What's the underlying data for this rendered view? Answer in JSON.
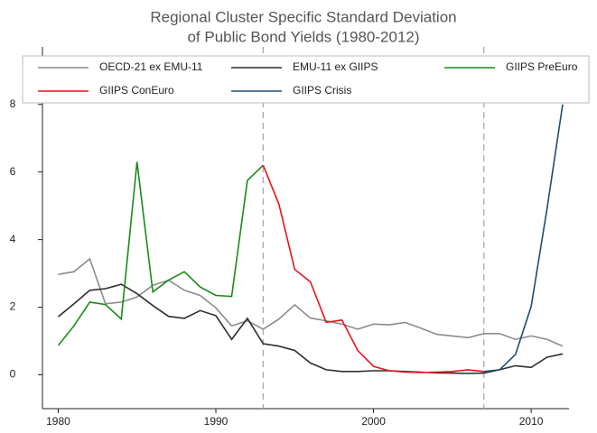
{
  "chart_data": {
    "type": "line",
    "title": [
      "Regional Cluster Specific Standard Deviation",
      "of Public Bond Yields (1980-2012)"
    ],
    "x": [
      1980,
      1981,
      1982,
      1983,
      1984,
      1985,
      1986,
      1987,
      1988,
      1989,
      1990,
      1991,
      1992,
      1993,
      1994,
      1995,
      1996,
      1997,
      1998,
      1999,
      2000,
      2001,
      2002,
      2003,
      2004,
      2005,
      2006,
      2007,
      2008,
      2009,
      2010,
      2011,
      2012
    ],
    "series": [
      {
        "name": "OECD-21 ex EMU-11",
        "color": "#8c8c8c",
        "values": [
          2.97,
          3.05,
          3.43,
          2.1,
          2.15,
          2.3,
          2.65,
          2.8,
          2.5,
          2.35,
          1.98,
          1.45,
          1.6,
          1.35,
          1.65,
          2.07,
          1.68,
          1.6,
          1.5,
          1.35,
          1.5,
          1.48,
          1.55,
          1.38,
          1.2,
          1.15,
          1.1,
          1.22,
          1.22,
          1.05,
          1.15,
          1.05,
          0.85
        ]
      },
      {
        "name": "EMU-11 ex GIIPS",
        "color": "#2e2e2e",
        "values": [
          1.72,
          2.1,
          2.5,
          2.55,
          2.68,
          2.4,
          2.05,
          1.73,
          1.67,
          1.9,
          1.75,
          1.05,
          1.67,
          0.92,
          0.85,
          0.72,
          0.35,
          0.15,
          0.1,
          0.1,
          0.12,
          0.12,
          0.1,
          0.08,
          0.06,
          0.05,
          0.04,
          0.05,
          0.15,
          0.27,
          0.22,
          0.52,
          0.62
        ]
      },
      {
        "name": "GIIPS PreEuro",
        "color": "#1a8a1a",
        "values": [
          0.87,
          1.45,
          2.15,
          2.08,
          1.65,
          6.3,
          2.45,
          2.8,
          3.05,
          2.6,
          2.35,
          2.32,
          5.75,
          6.2,
          null,
          null,
          null,
          null,
          null,
          null,
          null,
          null,
          null,
          null,
          null,
          null,
          null,
          null,
          null,
          null,
          null,
          null,
          null
        ]
      },
      {
        "name": "GIIPS ConEuro",
        "color": "#e8141c",
        "values": [
          null,
          null,
          null,
          null,
          null,
          null,
          null,
          null,
          null,
          null,
          null,
          null,
          null,
          6.2,
          5.05,
          3.12,
          2.75,
          1.55,
          1.62,
          0.72,
          0.25,
          0.12,
          0.08,
          0.07,
          0.08,
          0.1,
          0.15,
          0.1,
          null,
          null,
          null,
          null,
          null
        ]
      },
      {
        "name": "GIIPS Crisis",
        "color": "#1f4e6e",
        "values": [
          null,
          null,
          null,
          null,
          null,
          null,
          null,
          null,
          null,
          null,
          null,
          null,
          null,
          null,
          null,
          null,
          null,
          null,
          null,
          null,
          null,
          null,
          null,
          null,
          null,
          null,
          null,
          0.1,
          0.15,
          0.6,
          2.02,
          4.9,
          8.0
        ]
      }
    ],
    "xlim": [
      1979,
      2012.4
    ],
    "xticks": [
      1980,
      1990,
      2000,
      2010
    ],
    "ylim": [
      -1,
      9.7
    ],
    "yticks": [
      0,
      2,
      4,
      6,
      8
    ],
    "vlines": [
      1993,
      2007
    ],
    "legend": "top"
  }
}
